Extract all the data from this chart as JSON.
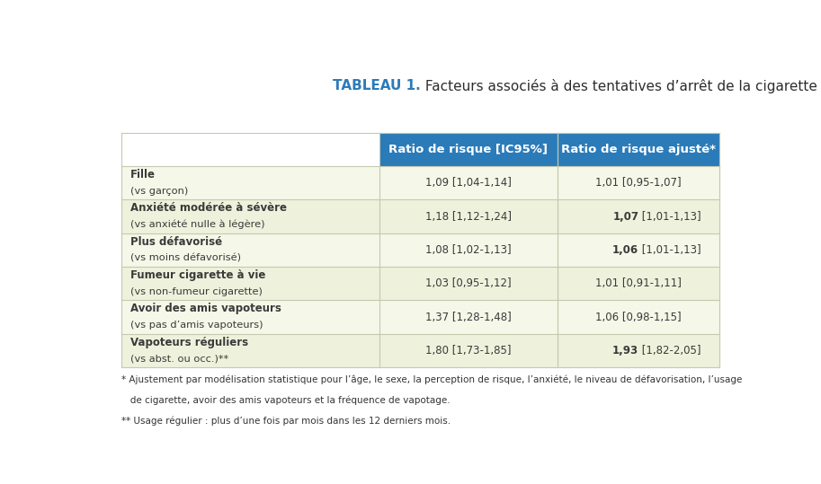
{
  "title_bold": "TABLEAU 1.",
  "title_normal": " Facteurs associés à des tentatives d’arrêt de la cigarette électronique",
  "col_headers": [
    "Ratio de risque [IC95%]",
    "Ratio de risque ajusté*"
  ],
  "rows": [
    {
      "label_bold": "Fille",
      "label_normal": "(vs garçon)",
      "col1": "1,09 [1,04-1,14]",
      "col2": "1,01 [0,95-1,07]",
      "col2_bold": false
    },
    {
      "label_bold": "Anxiété modérée à sévère",
      "label_normal": "(vs anxiété nulle à légère)",
      "col1": "1,18 [1,12-1,24]",
      "col2_prefix_bold": "1,07",
      "col2_suffix": " [1,01-1,13]",
      "col2_bold": true
    },
    {
      "label_bold": "Plus défavorisé",
      "label_normal": "(vs moins défavorisé)",
      "col1": "1,08 [1,02-1,13]",
      "col2_prefix_bold": "1,06",
      "col2_suffix": " [1,01-1,13]",
      "col2_bold": true
    },
    {
      "label_bold": "Fumeur cigarette à vie",
      "label_normal": "(vs non-fumeur cigarette)",
      "col1": "1,03 [0,95-1,12]",
      "col2": "1,01 [0,91-1,11]",
      "col2_bold": false
    },
    {
      "label_bold": "Avoir des amis vapoteurs",
      "label_normal": "(vs pas d’amis vapoteurs)",
      "col1": "1,37 [1,28-1,48]",
      "col2": "1,06 [0,98-1,15]",
      "col2_bold": false
    },
    {
      "label_bold": "Vapoteurs réguliers",
      "label_normal": "(vs abst. ou occ.)**",
      "col1": "1,80 [1,73-1,85]",
      "col2_prefix_bold": "1,93",
      "col2_suffix": " [1,82-2,05]",
      "col2_bold": true
    }
  ],
  "footnote1": "* Ajustement par modélisation statistique pour l’âge, le sexe, la perception de risque, l’anxiété, le niveau de défavorisation, l’usage",
  "footnote1b": "   de cigarette, avoir des amis vapoteurs et la fréquence de vapotage.",
  "footnote2": "** Usage régulier : plus d’une fois par mois dans les 12 derniers mois.",
  "header_bg_color": "#2B7BB9",
  "header_text_color": "#FFFFFF",
  "row_bg_even": "#EEF2DC",
  "row_bg_odd": "#F5F7E8",
  "label_text_color": "#3a3a3a",
  "data_text_color": "#3a3a3a",
  "title_color_bold": "#2B7BB9",
  "title_color_normal": "#2d2d2d",
  "fig_bg": "#FFFFFF",
  "line_color": "#C5C9B0"
}
